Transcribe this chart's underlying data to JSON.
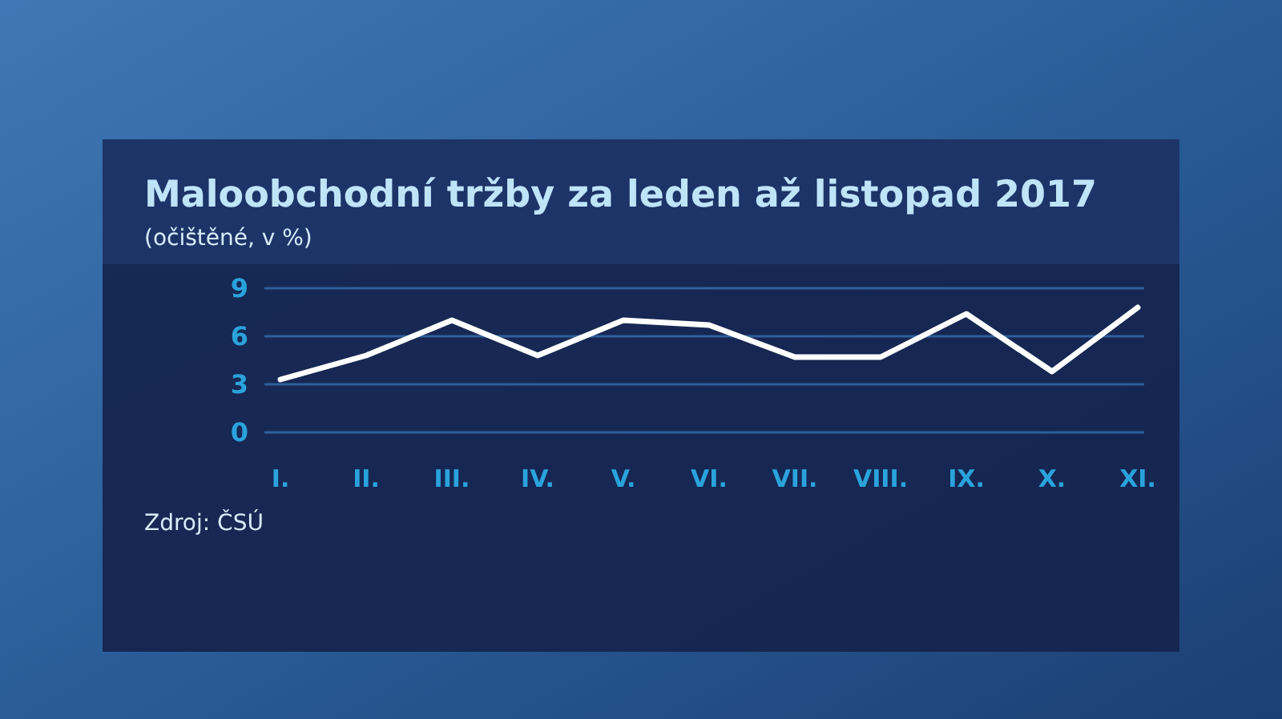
{
  "chart_data": {
    "type": "line",
    "title": "Maloobchodní tržby za leden až listopad 2017",
    "subtitle": "(očištěné, v %)",
    "categories": [
      "I.",
      "II.",
      "III.",
      "IV.",
      "V.",
      "VI.",
      "VII.",
      "VIII.",
      "IX.",
      "X.",
      "XI."
    ],
    "series": [
      {
        "color": "#ffffff",
        "values": [
          3.3,
          4.8,
          7.0,
          4.8,
          7.0,
          6.7,
          4.7,
          4.7,
          7.4,
          3.8,
          7.8
        ]
      }
    ],
    "ylim": [
      0,
      9
    ],
    "yticks": [
      0,
      3,
      6,
      9
    ],
    "grid": "y",
    "marker": "none",
    "line_style": "solid",
    "annotations": [
      "Zdroj: ČSÚ"
    ]
  }
}
